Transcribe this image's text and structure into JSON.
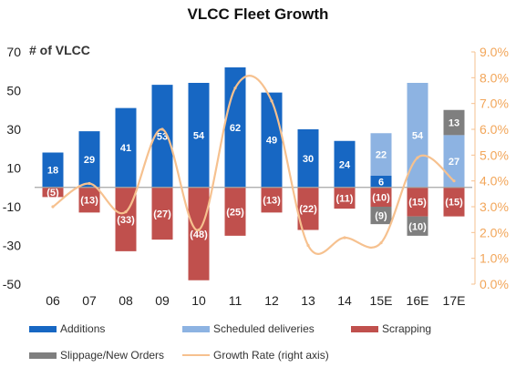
{
  "chart_data": {
    "type": "bar",
    "title": "VLCC Fleet Growth",
    "ylabel": "# of VLCC",
    "categories": [
      "06",
      "07",
      "08",
      "09",
      "10",
      "11",
      "12",
      "13",
      "14",
      "15E",
      "16E",
      "17E"
    ],
    "ylim": [
      -50,
      70
    ],
    "yticks": [
      70,
      50,
      30,
      10,
      -10,
      -30,
      -50
    ],
    "y2lim": [
      0,
      9
    ],
    "y2ticks": [
      "9.0%",
      "8.0%",
      "7.0%",
      "6.0%",
      "5.0%",
      "4.0%",
      "3.0%",
      "2.0%",
      "1.0%",
      "0.0%"
    ],
    "series": [
      {
        "name": "Additions",
        "color": "#1767c3",
        "values": [
          18,
          29,
          41,
          53,
          54,
          62,
          49,
          30,
          24,
          6,
          0,
          0
        ],
        "labels": [
          "18",
          "29",
          "41",
          "53",
          "54",
          "62",
          "49",
          "30",
          "24",
          "6",
          "",
          ""
        ]
      },
      {
        "name": "Scheduled deliveries",
        "color": "#8db3e2",
        "values": [
          0,
          0,
          0,
          0,
          0,
          0,
          0,
          0,
          0,
          22,
          54,
          27
        ],
        "labels": [
          "",
          "",
          "",
          "",
          "",
          "",
          "",
          "",
          "",
          "22",
          "54",
          "27"
        ]
      },
      {
        "name": "Scrapping",
        "color": "#c0504d",
        "values": [
          -5,
          -13,
          -33,
          -27,
          -48,
          -25,
          -13,
          -22,
          -11,
          -10,
          -15,
          -15
        ],
        "labels": [
          "(5)",
          "(13)",
          "(33)",
          "(27)",
          "(48)",
          "(25)",
          "(13)",
          "(22)",
          "(11)",
          "(10)",
          "(15)",
          "(15)"
        ]
      },
      {
        "name": "Slippage/New Orders",
        "color": "#7f7f7f",
        "values": [
          0,
          0,
          0,
          0,
          0,
          0,
          0,
          0,
          0,
          -9,
          -10,
          13
        ],
        "labels": [
          "",
          "",
          "",
          "",
          "",
          "",
          "",
          "",
          "",
          "(9)",
          "(10)",
          "13"
        ]
      },
      {
        "name": "Growth Rate (right axis)",
        "type": "line",
        "axis": "right",
        "color": "#f6c18f",
        "values": [
          3.0,
          3.9,
          2.8,
          6.0,
          2.1,
          7.6,
          7.1,
          1.5,
          1.8,
          1.6,
          4.9,
          4.0
        ]
      }
    ]
  }
}
